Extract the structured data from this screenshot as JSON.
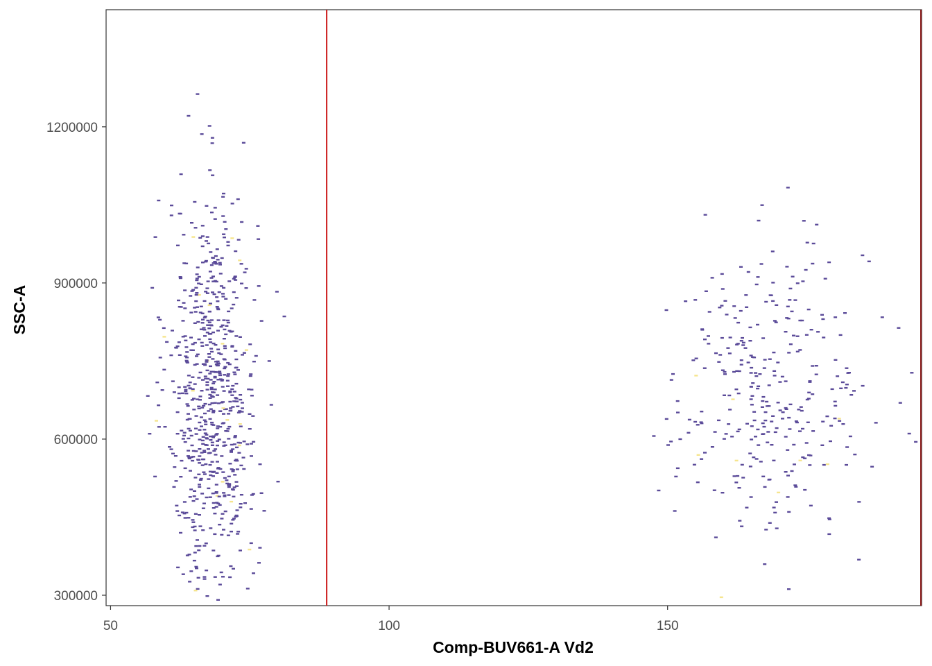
{
  "chart_data": {
    "type": "scatter",
    "title": "",
    "xlabel": "Comp-BUV661-A Vd2",
    "ylabel": "SSC-A",
    "xlim": [
      49.2,
      195.6
    ],
    "ylim": [
      280000,
      1425000
    ],
    "x_ticks": [
      {
        "value": 50,
        "label": "50"
      },
      {
        "value": 100,
        "label": "100"
      },
      {
        "value": 150,
        "label": "150"
      }
    ],
    "y_ticks": [
      {
        "value": 300000,
        "label": "300000"
      },
      {
        "value": 600000,
        "label": "600000"
      },
      {
        "value": 900000,
        "label": "900000"
      },
      {
        "value": 1200000,
        "label": "1200000"
      }
    ],
    "gates": [
      {
        "x": 88.8,
        "color": "#cc1a1a"
      },
      {
        "x": 195.5,
        "color": "#8b1a1a"
      }
    ],
    "grid": false,
    "legend": "none",
    "colors": {
      "point": "#5b4b99",
      "highlight": "#f6e58d",
      "frame": "#333333"
    },
    "clusters": [
      {
        "name": "",
        "x_center": 68,
        "x_sd": 4.0,
        "y_center": 690000,
        "y_sd": 190000,
        "count": 720
      },
      {
        "name": "",
        "x_center": 168,
        "x_sd": 9.0,
        "y_center": 690000,
        "y_sd": 140000,
        "count": 330
      }
    ]
  }
}
